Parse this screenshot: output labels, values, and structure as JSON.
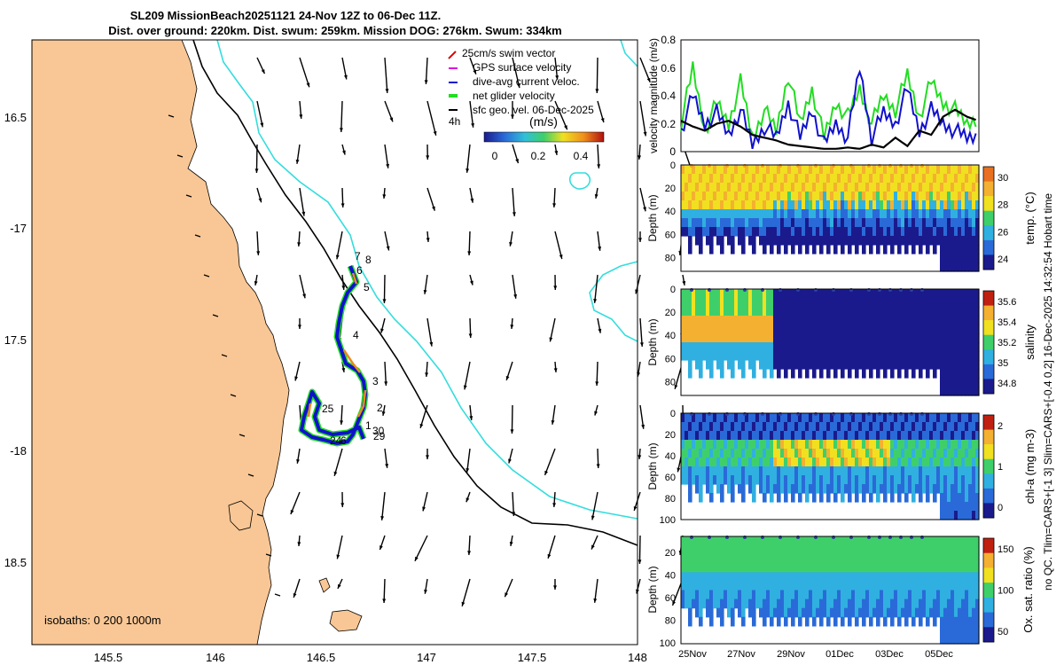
{
  "title": {
    "line1": "SL209 MissionBeach20251121 24-Nov 12Z to 06-Dec 11Z.",
    "line2": "Dist. over ground: 220km. Dist. swum: 259km. Mission DOG: 276km. Swum: 334km"
  },
  "colors": {
    "land": "#f9c795",
    "isobath_shallow": "#000000",
    "isobath_deep": "#33dddd",
    "net_velocity": "#22dd22",
    "dive_avg": "#1111cc",
    "gps": "#dd11dd",
    "swim": "#dd0000"
  },
  "map": {
    "lon_ticks": [
      "145.5",
      "146",
      "146.5",
      "147",
      "147.5",
      "148"
    ],
    "lat_ticks": [
      "16.5",
      "-17",
      "17.5",
      "-18",
      "18.5"
    ],
    "legend": {
      "items": [
        "25cm/s swim vector",
        "GPS surface velocity",
        "dive-avg current veloc.",
        "net glider velocity",
        "sfc geo. vel. 06-Dec-2025"
      ],
      "time_label": "4h",
      "units": "(m/s)",
      "ticks": [
        "0",
        "0.2",
        "0.4"
      ]
    },
    "isobaths_label": "isobaths: 0   200  1000m",
    "day_labels": [
      "7",
      "8",
      "6",
      "5",
      "4",
      "3",
      "2",
      "25",
      "1",
      "30",
      "29",
      "24",
      "6"
    ]
  },
  "right_side_label": "no QC. Tlim=CARS+[-1 3] Slim=CARS+[-0.4 0.2] 16-Dec-2025 14:32:54 Hobart time",
  "chart_data": [
    {
      "type": "line",
      "title": "",
      "ylabel": "velocity magnitude (m/s)",
      "ylim": [
        0,
        0.8
      ],
      "yticks": [
        "0",
        "0.2",
        "0.4",
        "0.6",
        "0.8"
      ],
      "x_days": [
        24.5,
        25,
        25.5,
        26,
        26.5,
        27,
        27.5,
        28,
        28.5,
        29,
        29.5,
        30,
        30.5,
        31,
        31.5,
        32,
        32.5,
        33,
        33.5,
        34,
        34.5,
        35,
        35.5,
        36,
        36.5,
        37
      ],
      "series": [
        {
          "name": "net glider velocity",
          "color": "#22dd22",
          "values": [
            0.2,
            0.6,
            0.15,
            0.35,
            0.2,
            0.5,
            0.1,
            0.3,
            0.15,
            0.55,
            0.2,
            0.45,
            0.1,
            0.35,
            0.25,
            0.45,
            0.2,
            0.4,
            0.3,
            0.55,
            0.25,
            0.5,
            0.35,
            0.3,
            0.2,
            0.25
          ]
        },
        {
          "name": "dive-avg current veloc.",
          "color": "#1111cc",
          "values": [
            0.15,
            0.4,
            0.2,
            0.28,
            0.12,
            0.3,
            0.05,
            0.18,
            0.1,
            0.35,
            0.1,
            0.3,
            0.05,
            0.2,
            0.1,
            0.6,
            0.1,
            0.28,
            0.2,
            0.45,
            0.15,
            0.3,
            0.2,
            0.15,
            0.1,
            0.12
          ]
        },
        {
          "name": "sfc geo. vel.",
          "color": "#000000",
          "values": [
            0.22,
            0.18,
            0.15,
            0.2,
            0.22,
            0.18,
            0.12,
            0.1,
            0.08,
            0.05,
            0.04,
            0.03,
            0.02,
            0.02,
            0.03,
            0.02,
            0.05,
            0.03,
            0.1,
            0.04,
            0.15,
            0.12,
            0.25,
            0.3,
            0.25,
            0.22
          ]
        }
      ]
    },
    {
      "type": "heatmap",
      "ylabel": "Depth (m)",
      "yticks": [
        "0",
        "20",
        "40",
        "60",
        "80"
      ],
      "colorbar_label": "temp. (°C)",
      "colorbar_ticks": [
        "30",
        "28",
        "26",
        "24"
      ],
      "colors": [
        "#1a1a8c",
        "#2a6ad8",
        "#30b0e0",
        "#3fcf6a",
        "#f0e020",
        "#f4b030",
        "#e87020"
      ]
    },
    {
      "type": "heatmap",
      "ylabel": "Depth (m)",
      "yticks": [
        "0",
        "20",
        "40",
        "60",
        "80"
      ],
      "colorbar_label": "salinity",
      "colorbar_ticks": [
        "35.6",
        "35.4",
        "35.2",
        "35",
        "34.8"
      ],
      "colors": [
        "#1a1a8c",
        "#2a6ad8",
        "#30b0e0",
        "#3fcf6a",
        "#f0e020",
        "#f4b030",
        "#c02010"
      ]
    },
    {
      "type": "heatmap",
      "ylabel": "Depth (m)",
      "yticks": [
        "0",
        "20",
        "40",
        "60",
        "80",
        "100"
      ],
      "colorbar_label": "chl-a (mg m-3)",
      "colorbar_ticks": [
        "2",
        "1",
        "0"
      ],
      "colors": [
        "#1a1a8c",
        "#2a6ad8",
        "#30b0e0",
        "#3fcf6a",
        "#f0e020",
        "#f4b030",
        "#c02010"
      ]
    },
    {
      "type": "heatmap",
      "ylabel": "Depth (m)",
      "yticks": [
        "20",
        "40",
        "60",
        "80",
        "100"
      ],
      "colorbar_label": "Ox. sat. ratio (%)",
      "colorbar_ticks": [
        "150",
        "100",
        "50"
      ],
      "colors": [
        "#1a1a8c",
        "#2a6ad8",
        "#30b0e0",
        "#3fcf6a",
        "#f0e020",
        "#f4b030",
        "#c02010"
      ],
      "x_tick_labels": [
        "25Nov",
        "27Nov",
        "29Nov",
        "01Dec",
        "03Dec",
        "05Dec"
      ]
    }
  ]
}
